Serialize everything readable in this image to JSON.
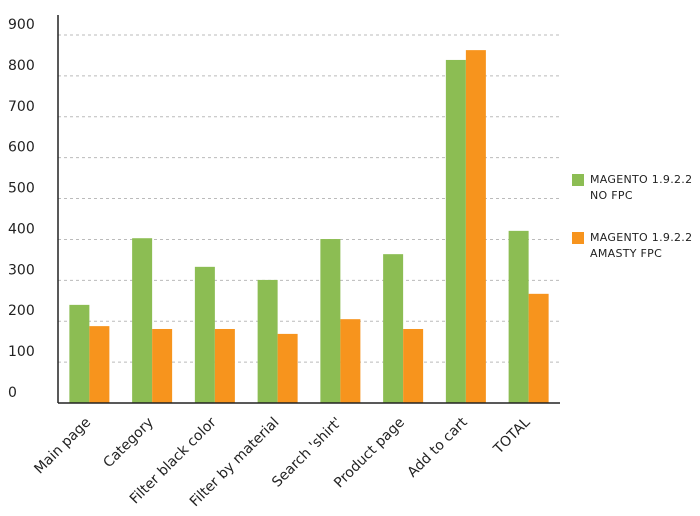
{
  "chart_data": {
    "type": "bar",
    "categories": [
      "Main page",
      "Category",
      "Filter black color",
      "Filter by material",
      "Search 'shirt'",
      "Product page",
      "Add to cart",
      "TOTAL"
    ],
    "series": [
      {
        "name": "MAGENTO 1.9.2.2 NO FPC",
        "color": "#8cbd53",
        "values": [
          240,
          403,
          333,
          301,
          401,
          364,
          839,
          421
        ]
      },
      {
        "name": "MAGENTO 1.9.2.2 AMASTY FPC",
        "color": "#f7941d",
        "values": [
          188,
          181,
          181,
          169,
          205,
          181,
          863,
          267
        ]
      }
    ],
    "ylim": [
      0,
      900
    ],
    "yticks": [
      0,
      100,
      200,
      300,
      400,
      500,
      600,
      700,
      800,
      900
    ],
    "grid": true
  }
}
